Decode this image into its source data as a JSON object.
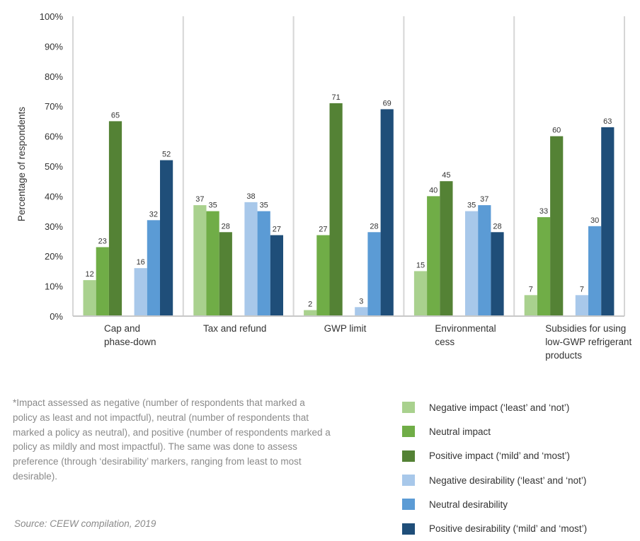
{
  "chart_data": {
    "type": "bar",
    "categories": [
      [
        "Cap and",
        "phase-down"
      ],
      [
        "Tax and refund"
      ],
      [
        "GWP limit"
      ],
      [
        "Environmental",
        "cess"
      ],
      [
        "Subsidies for using",
        "low-GWP refrigerant",
        "products"
      ]
    ],
    "series": [
      {
        "name": "Negative impact (‘least’ and ‘not’)",
        "color": "#a9d18e",
        "values": [
          12,
          37,
          2,
          15,
          7
        ]
      },
      {
        "name": "Neutral impact",
        "color": "#70ad47",
        "values": [
          23,
          35,
          27,
          40,
          33
        ]
      },
      {
        "name": "Positive impact (‘mild’ and ‘most’)",
        "color": "#548235",
        "values": [
          65,
          28,
          71,
          45,
          60
        ]
      },
      {
        "name": "Negative desirability (‘least’ and ‘not’)",
        "color": "#a8c8ea",
        "values": [
          16,
          38,
          3,
          35,
          7
        ]
      },
      {
        "name": "Neutral desirability",
        "color": "#5b9bd5",
        "values": [
          32,
          35,
          28,
          37,
          30
        ]
      },
      {
        "name": "Positive desirability (‘mild’ and ‘most’)",
        "color": "#1f4e79",
        "values": [
          52,
          27,
          69,
          28,
          63
        ]
      }
    ],
    "ylabel": "Percentage of respondents",
    "ylim": [
      0,
      100
    ],
    "yticks": [
      "0%",
      "10%",
      "20%",
      "30%",
      "40%",
      "50%",
      "60%",
      "70%",
      "80%",
      "90%",
      "100%"
    ],
    "legend": "bottom-right",
    "grid": false
  },
  "footnote": "*Impact assessed as negative (number of respondents that marked a policy as least and not impactful), neutral (number of respondents that marked a policy as neutral), and positive (number of respondents marked a policy as mildly and most impactful). The same was done to assess preference (through ‘desirability’ markers, ranging from least to most desirable).",
  "source": "Source: CEEW compilation, 2019"
}
